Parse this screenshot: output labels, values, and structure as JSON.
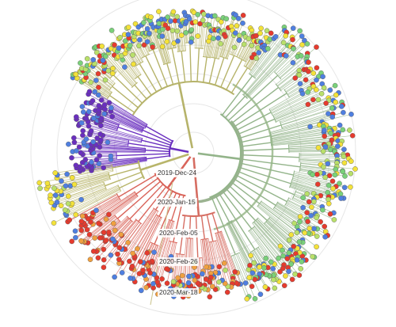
{
  "tree": {
    "layout": "radial",
    "date_ticks": [
      "2019-Dec-24",
      "2020-Jan-15",
      "2020-Feb-05",
      "2020-Feb-26",
      "2020-Mar-18"
    ],
    "clades": [
      {
        "name": "",
        "color": "#6a2fbf",
        "tips": [
          "#6a2fbf",
          "#6a2fbf",
          "#6a2fbf",
          "#4f7fe0",
          "#6a2fbf"
        ]
      },
      {
        "name": "",
        "color": "#b8b56a",
        "tips": [
          "#f3e23a",
          "#f3e23a",
          "#b9e06a",
          "#4f7fe0",
          "#f3e23a"
        ]
      },
      {
        "name": "",
        "color": "#d9645a",
        "tips": [
          "#e63b2e",
          "#e63b2e",
          "#e63b2e",
          "#f0a040",
          "#4f7fe0"
        ]
      },
      {
        "name": "",
        "color": "#b6b36a",
        "tips": [
          "#f3e23a",
          "#b9e06a",
          "#e63b2e",
          "#4f7fe0",
          "#7ad17a"
        ]
      },
      {
        "name": "",
        "color": "#93b48a",
        "tips": [
          "#b9e06a",
          "#7ad17a",
          "#e63b2e",
          "#f3e23a",
          "#4f7fe0"
        ]
      },
      {
        "name": "",
        "color": "#d66d62",
        "tips": [
          "#e63b2e",
          "#e63b2e",
          "#f0a040",
          "#b9e06a",
          "#4f7fe0"
        ]
      }
    ]
  }
}
